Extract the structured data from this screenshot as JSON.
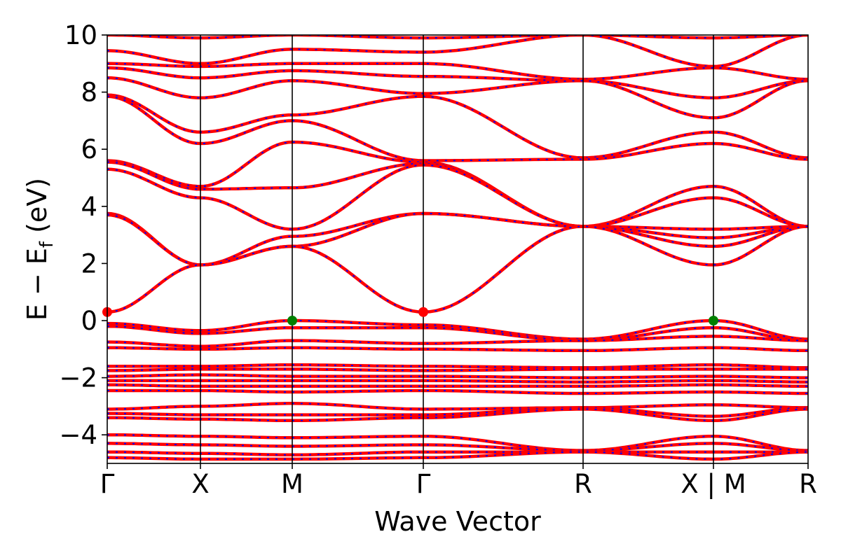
{
  "chart_data": {
    "type": "line",
    "title": "",
    "xlabel": "Wave Vector",
    "ylabel_main": "E − E",
    "ylabel_sub": "f",
    "ylabel_unit": " (eV)",
    "ylim": [
      -5,
      10
    ],
    "yticks": [
      {
        "value": 10,
        "label": "10"
      },
      {
        "value": 8,
        "label": "8"
      },
      {
        "value": 6,
        "label": "6"
      },
      {
        "value": 4,
        "label": "4"
      },
      {
        "value": 2,
        "label": "2"
      },
      {
        "value": 0,
        "label": "0"
      },
      {
        "value": -2,
        "label": "−2"
      },
      {
        "value": -4,
        "label": "−4"
      }
    ],
    "xlim": [
      0,
      1
    ],
    "kpoints": [
      {
        "label": "Γ",
        "x": 0.0
      },
      {
        "label": "X",
        "x": 0.133
      },
      {
        "label": "M",
        "x": 0.264
      },
      {
        "label": "Γ",
        "x": 0.451
      },
      {
        "label": "R",
        "x": 0.679
      },
      {
        "label": "X | M",
        "x": 0.865
      },
      {
        "label": "R",
        "x": 1.0
      }
    ],
    "grid": false,
    "series": [
      {
        "color": "#ff0000",
        "dash_color": "#0000ff"
      }
    ],
    "markers": [
      {
        "x": 0.0,
        "y": 0.3,
        "color": "#ff0000",
        "kind": "CBM"
      },
      {
        "x": 0.451,
        "y": 0.3,
        "color": "#ff0000",
        "kind": "CBM"
      },
      {
        "x": 0.264,
        "y": 0.0,
        "color": "#008000",
        "kind": "VBM"
      },
      {
        "x": 0.865,
        "y": 0.0,
        "color": "#008000",
        "kind": "VBM"
      }
    ],
    "bands": [
      [
        10.0,
        9.9,
        10.0,
        9.9,
        10.0,
        9.9,
        10.0
      ],
      [
        9.45,
        9.0,
        9.5,
        9.4,
        10.0,
        8.9,
        10.0
      ],
      [
        9.0,
        8.9,
        9.0,
        9.0,
        8.45,
        8.85,
        8.45
      ],
      [
        8.85,
        8.5,
        8.75,
        8.55,
        8.4,
        7.8,
        8.4
      ],
      [
        8.5,
        7.8,
        8.4,
        7.95,
        8.4,
        7.1,
        8.4
      ],
      [
        7.9,
        6.6,
        7.2,
        7.85,
        5.7,
        6.6,
        5.7
      ],
      [
        7.85,
        6.2,
        7.0,
        5.6,
        5.65,
        6.2,
        5.65
      ],
      [
        5.6,
        4.7,
        6.25,
        5.55,
        3.3,
        4.7,
        3.3
      ],
      [
        5.55,
        4.6,
        4.65,
        5.5,
        3.3,
        4.3,
        3.3
      ],
      [
        5.3,
        4.3,
        3.2,
        5.45,
        3.3,
        3.2,
        3.3
      ],
      [
        3.75,
        1.95,
        2.95,
        3.75,
        3.3,
        2.9,
        3.3
      ],
      [
        3.7,
        1.95,
        2.6,
        3.75,
        3.3,
        2.6,
        3.3
      ],
      [
        0.3,
        1.95,
        2.6,
        0.3,
        3.3,
        1.95,
        3.3
      ],
      [
        -0.1,
        -0.35,
        0.0,
        -0.15,
        -0.65,
        0.0,
        -0.65
      ],
      [
        -0.2,
        -0.45,
        -0.25,
        -0.25,
        -0.7,
        -0.25,
        -0.7
      ],
      [
        -0.75,
        -0.9,
        -0.7,
        -0.8,
        -0.7,
        -0.55,
        -0.7
      ],
      [
        -0.95,
        -1.0,
        -0.95,
        -1.0,
        -1.05,
        -0.95,
        -1.05
      ],
      [
        -1.6,
        -1.6,
        -1.55,
        -1.6,
        -1.65,
        -1.55,
        -1.65
      ],
      [
        -1.75,
        -1.7,
        -1.7,
        -1.75,
        -1.7,
        -1.7,
        -1.7
      ],
      [
        -1.95,
        -1.9,
        -1.95,
        -1.95,
        -2.0,
        -1.95,
        -2.0
      ],
      [
        -2.1,
        -2.1,
        -2.1,
        -2.1,
        -2.15,
        -2.1,
        -2.15
      ],
      [
        -2.25,
        -2.3,
        -2.3,
        -2.3,
        -2.3,
        -2.25,
        -2.3
      ],
      [
        -2.45,
        -2.45,
        -2.5,
        -2.45,
        -2.55,
        -2.5,
        -2.55
      ],
      [
        -3.1,
        -3.0,
        -2.9,
        -3.1,
        -3.05,
        -2.95,
        -3.05
      ],
      [
        -3.25,
        -3.3,
        -3.3,
        -3.3,
        -3.05,
        -3.35,
        -3.05
      ],
      [
        -3.4,
        -3.45,
        -3.5,
        -3.4,
        -3.1,
        -3.5,
        -3.1
      ],
      [
        -4.0,
        -4.05,
        -4.1,
        -4.05,
        -4.55,
        -4.05,
        -4.55
      ],
      [
        -4.3,
        -4.35,
        -4.4,
        -4.35,
        -4.55,
        -4.3,
        -4.55
      ],
      [
        -4.6,
        -4.65,
        -4.7,
        -4.6,
        -4.6,
        -4.6,
        -4.6
      ],
      [
        -4.8,
        -4.85,
        -4.85,
        -4.8,
        -4.6,
        -4.85,
        -4.6
      ]
    ]
  }
}
